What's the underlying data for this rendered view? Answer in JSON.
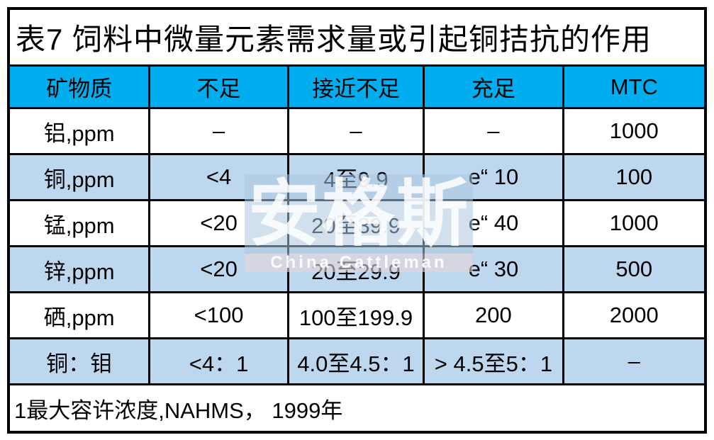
{
  "title": "表7  饲料中微量元素需求量或引起铜拮抗的作用",
  "table": {
    "headers": [
      "矿物质",
      "不足",
      "接近不足",
      "充足",
      "MTC"
    ],
    "rows": [
      {
        "cells": [
          "铝,ppm",
          "–",
          "–",
          "–",
          "1000"
        ]
      },
      {
        "cells": [
          "铜,ppm",
          "<4",
          "4至9.9",
          "e“ 10",
          "100"
        ]
      },
      {
        "cells": [
          "锰,ppm",
          "<20",
          "20至39.9",
          "e“ 40",
          "1000"
        ]
      },
      {
        "cells": [
          "锌,ppm",
          "<20",
          "20至29.9",
          "e“ 30",
          "500"
        ]
      },
      {
        "cells": [
          "硒,ppm",
          "<100",
          "100至199.9",
          "200",
          "2000"
        ]
      },
      {
        "cells": [
          "铜：钼",
          "<4：1",
          "4.0至4.5：1",
          "> 4.5至5：1",
          "–"
        ]
      }
    ],
    "footnote": "1最大容许浓度,NAHMS， 1999年"
  },
  "watermark": {
    "brand": "安格斯",
    "subtitle": "China Cattleman"
  },
  "colors": {
    "header_bg": "#00AEEF",
    "row_alt_bg": "#BDD7EE",
    "border": "#000000",
    "background": "#FFFFFF"
  }
}
